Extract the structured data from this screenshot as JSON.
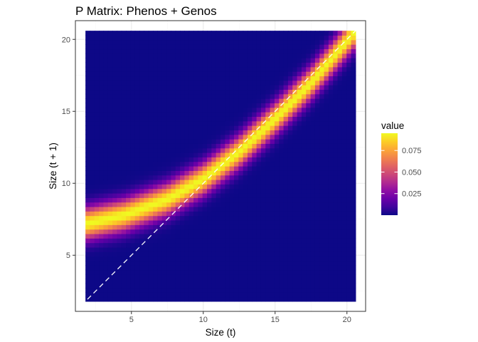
{
  "chart_data": {
    "type": "heatmap",
    "title": "P Matrix: Phenos + Genos",
    "xlabel": "Size (t)",
    "ylabel": "Size (t + 1)",
    "xlim": [
      1.1,
      21.3
    ],
    "ylim": [
      1.1,
      21.3
    ],
    "x_ticks": [
      5,
      10,
      15,
      20
    ],
    "y_ticks": [
      5,
      10,
      15,
      20
    ],
    "grid": true,
    "domain": [
      1.8,
      20.6
    ],
    "mean_curve": {
      "x": [
        1.8,
        4.5,
        7.5,
        10.0,
        12.5,
        15.0,
        17.5,
        20.6
      ],
      "y": [
        7.2,
        7.8,
        8.9,
        10.3,
        12.2,
        14.5,
        17.0,
        20.6
      ]
    },
    "spread_sd": 0.75,
    "peak_value": 0.095,
    "identity_line": true,
    "colorscale": "plasma",
    "colors": {
      "background": "#ffffff",
      "panel_border": "#333333",
      "grid_major": "#ebebeb",
      "grid_minor": "#f5f5f5",
      "low": "#0d0887",
      "high": "#f0f921",
      "identity_line": "#ffffff"
    },
    "legend": {
      "title": "value",
      "position": "right",
      "min": 0.0,
      "max": 0.095,
      "ticks": [
        {
          "value": 0.025,
          "label": "0.025"
        },
        {
          "value": 0.05,
          "label": "0.050"
        },
        {
          "value": 0.075,
          "label": "0.075"
        }
      ]
    }
  }
}
